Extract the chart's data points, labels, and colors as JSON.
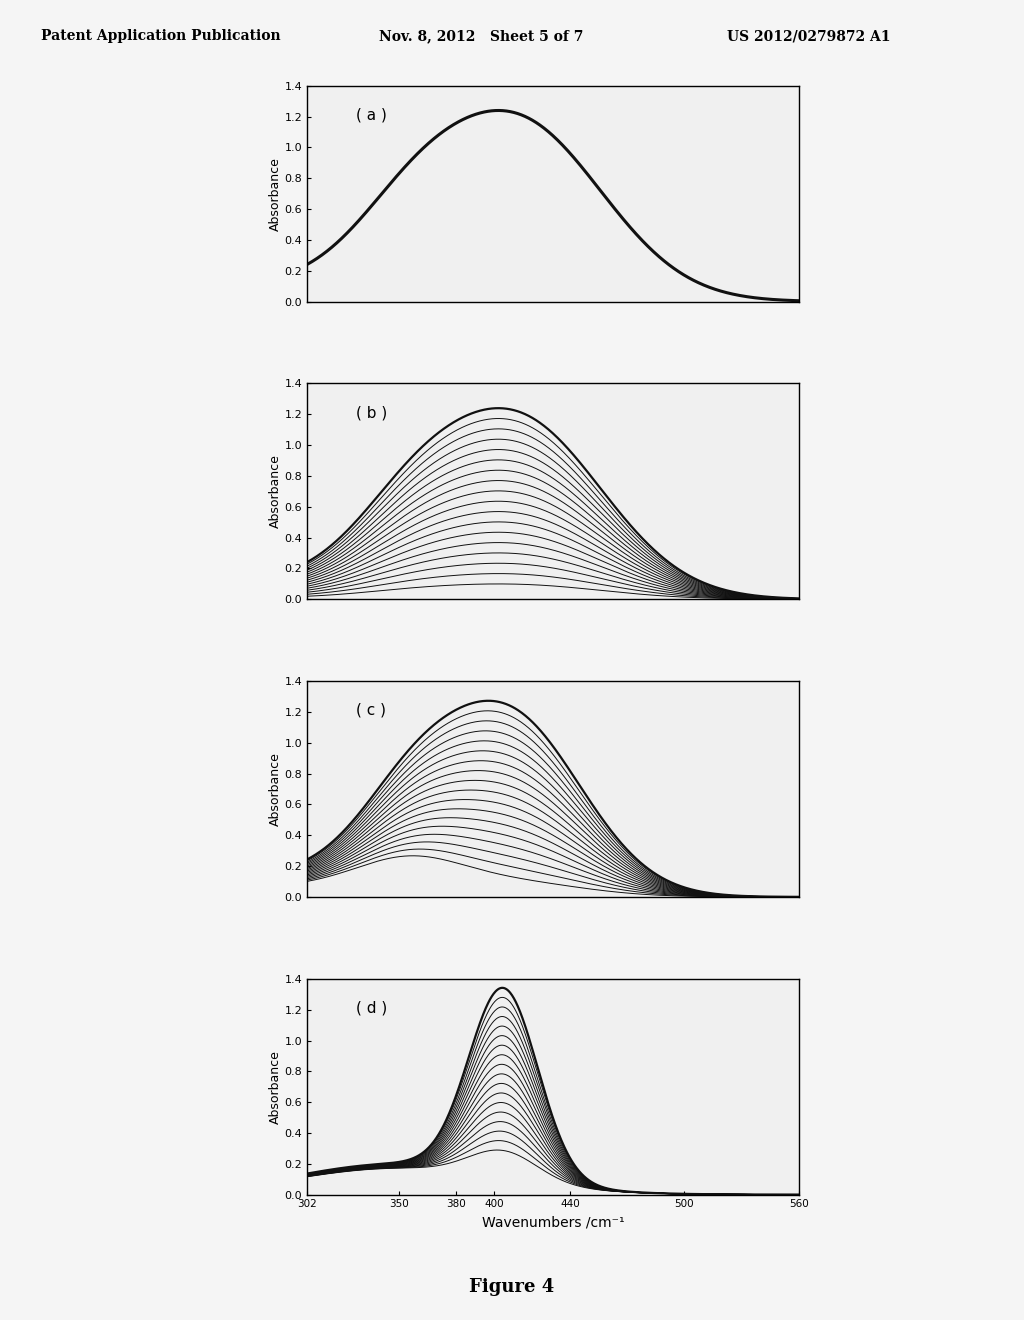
{
  "header_left": "Patent Application Publication",
  "header_mid": "Nov. 8, 2012   Sheet 5 of 7",
  "header_right": "US 2012/0279872 A1",
  "figure_label": "Figure 4",
  "xmin": 302,
  "xmax": 560,
  "ymin": 0.0,
  "ymax": 1.4,
  "yticks": [
    0.0,
    0.2,
    0.4,
    0.6,
    0.8,
    1.0,
    1.2,
    1.4
  ],
  "xticks": [
    302,
    350,
    380,
    400,
    440,
    500,
    560
  ],
  "xlabel": "Wavenumbers /cm⁻¹",
  "ylabel": "Absorbance",
  "subplot_labels": [
    "( a )",
    "( b )",
    "( c )",
    "( d )"
  ],
  "line_color": "#111111",
  "bg_color": "#f5f5f5",
  "border_color": "#000000",
  "panel_b_n_curves": 18,
  "panel_c_n_curves": 18,
  "panel_d_n_curves": 18
}
